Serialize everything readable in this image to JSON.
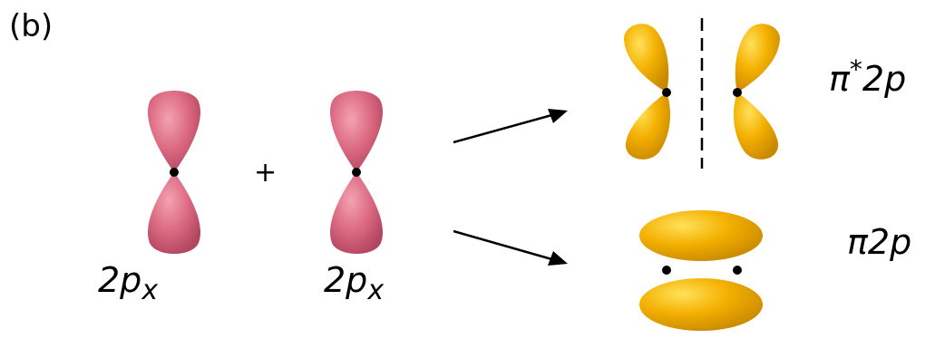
{
  "panel_label": "(b)",
  "plus": "+",
  "left_orbital_label": {
    "main": "2p",
    "sub": "x"
  },
  "right_orbital_label": {
    "main": "2p",
    "sub": "x"
  },
  "antibonding_label": {
    "main": "π",
    "sup": "*",
    "tail": "2p"
  },
  "bonding_label": {
    "main": "π",
    "tail": "2p"
  },
  "colors": {
    "p_orbital": "#d9607a",
    "pi_orbital": "#f0a400",
    "orbital_shadow": "#b08000"
  }
}
